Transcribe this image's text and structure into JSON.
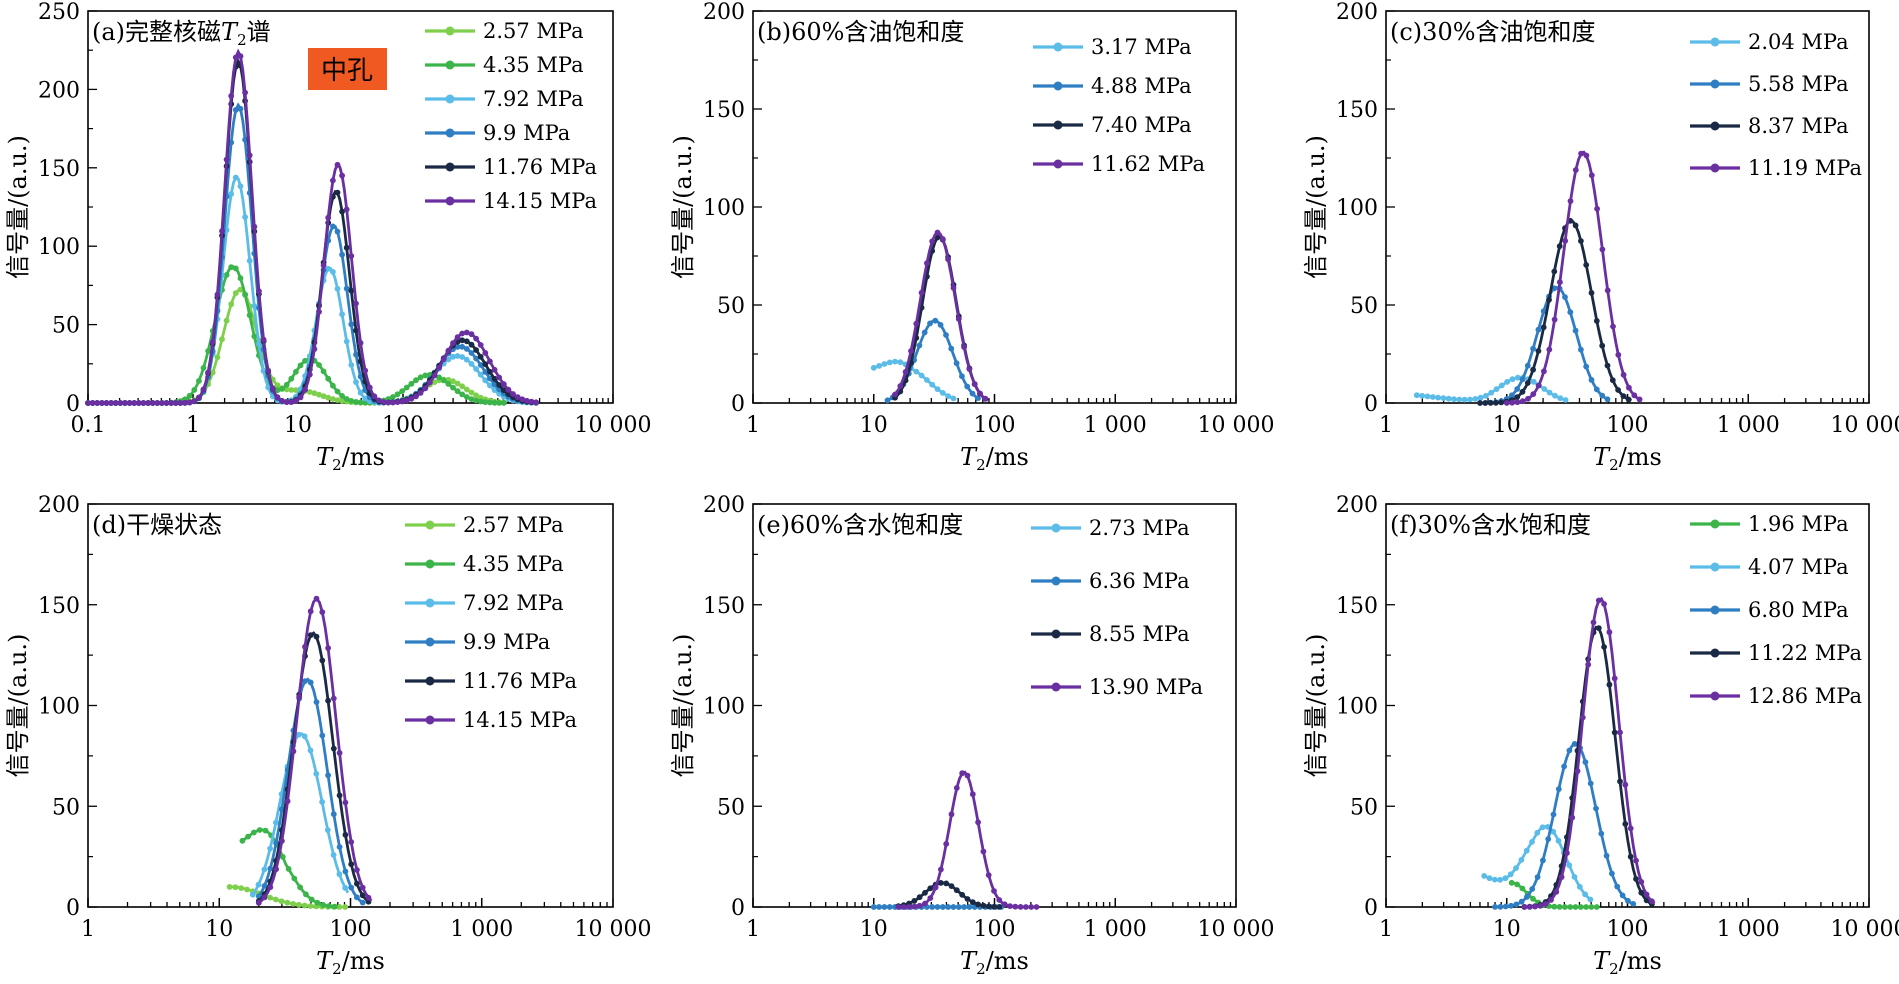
{
  "colors": {
    "c1": "#7ed04c",
    "c2": "#3bb44a",
    "c3": "#5bbce8",
    "c4": "#2f7ec4",
    "c5": "#1b2a44",
    "c6": "#6a2fa0",
    "badge": "#f05a22"
  },
  "chart_data": [
    {
      "id": "a",
      "type": "line",
      "title": "(a)完整核磁",
      "title_italic": "T",
      "title_sub": "2",
      "title_tail": "谱",
      "badge": "中孔",
      "xlabel": "T2/ms",
      "ylabel": "信号量/(a.u.)",
      "xscale": "log",
      "xlim": [
        0.1,
        10000
      ],
      "xticks": [
        0.1,
        1,
        10,
        100,
        1000,
        10000
      ],
      "xticklabels": [
        "0.1",
        "1",
        "10",
        "100",
        "1 000",
        "10 000"
      ],
      "ylim": [
        0,
        250
      ],
      "yticks": [
        0,
        50,
        100,
        150,
        200,
        250
      ],
      "legend": "top-right",
      "series": [
        {
          "name": "2.57 MPa",
          "color": "c1",
          "x_range": [
            0.1,
            1000
          ],
          "peaks": [
            [
              2.8,
              72,
              0.16
            ],
            [
              250,
              15,
              0.2
            ]
          ],
          "tail": [
            [
              10,
              8,
              0.22
            ]
          ]
        },
        {
          "name": "4.35 MPa",
          "color": "c2",
          "x_range": [
            0.1,
            1000
          ],
          "peaks": [
            [
              2.4,
              87,
              0.17
            ],
            [
              13,
              28,
              0.16
            ],
            [
              180,
              18,
              0.2
            ]
          ]
        },
        {
          "name": "7.92 MPa",
          "color": "c3",
          "x_range": [
            0.1,
            2000
          ],
          "peaks": [
            [
              2.6,
              144,
              0.13
            ],
            [
              20,
              86,
              0.13
            ],
            [
              330,
              30,
              0.22
            ]
          ]
        },
        {
          "name": "9.9 MPa",
          "color": "c4",
          "x_range": [
            0.1,
            2000
          ],
          "peaks": [
            [
              2.7,
              190,
              0.13
            ],
            [
              22,
              113,
              0.13
            ],
            [
              350,
              36,
              0.22
            ]
          ]
        },
        {
          "name": "11.76 MPa",
          "color": "c5",
          "x_range": [
            0.1,
            2000
          ],
          "peaks": [
            [
              2.7,
              218,
              0.13
            ],
            [
              23,
              135,
              0.13
            ],
            [
              370,
              40,
              0.22
            ]
          ]
        },
        {
          "name": "14.15 MPa",
          "color": "c6",
          "x_range": [
            0.1,
            2000
          ],
          "peaks": [
            [
              2.7,
              224,
              0.13
            ],
            [
              24,
              152,
              0.13
            ],
            [
              400,
              45,
              0.22
            ]
          ]
        }
      ]
    },
    {
      "id": "b",
      "type": "line",
      "title": "(b)60%含油饱和度",
      "xlabel": "T2/ms",
      "ylabel": "信号量/(a.u.)",
      "xscale": "log",
      "xlim": [
        1,
        10000
      ],
      "xticks": [
        1,
        10,
        100,
        1000,
        10000
      ],
      "xticklabels": [
        "1",
        "10",
        "100",
        "1 000",
        "10 000"
      ],
      "ylim": [
        0,
        200
      ],
      "yticks": [
        0,
        50,
        100,
        150,
        200
      ],
      "legend": "top-right",
      "series": [
        {
          "name": "3.17 MPa",
          "color": "c3",
          "x_range": [
            10,
            50
          ],
          "peaks": [
            [
              18,
              18,
              0.2
            ]
          ],
          "base": 10
        },
        {
          "name": "4.88 MPa",
          "color": "c4",
          "x_range": [
            13,
            80
          ],
          "peaks": [
            [
              32,
              42,
              0.15
            ]
          ]
        },
        {
          "name": "7.40 MPa",
          "color": "c5",
          "x_range": [
            15,
            90
          ],
          "peaks": [
            [
              35,
              85,
              0.14
            ]
          ]
        },
        {
          "name": "11.62 MPa",
          "color": "c6",
          "x_range": [
            15,
            90
          ],
          "peaks": [
            [
              34,
              87,
              0.145
            ]
          ]
        }
      ]
    },
    {
      "id": "c",
      "type": "line",
      "title": "(c)30%含油饱和度",
      "xlabel": "T2/ms",
      "ylabel": "信号量/(a.u.)",
      "xscale": "log",
      "xlim": [
        1,
        10000
      ],
      "xticks": [
        1,
        10,
        100,
        1000,
        10000
      ],
      "xticklabels": [
        "1",
        "10",
        "100",
        "1 000",
        "10 000"
      ],
      "ylim": [
        0,
        200
      ],
      "yticks": [
        0,
        50,
        100,
        150,
        200
      ],
      "legend": "top-right",
      "series": [
        {
          "name": "2.04 MPa",
          "color": "c3",
          "x_range": [
            1.8,
            32
          ],
          "peaks": [
            [
              13,
              13,
              0.18
            ]
          ],
          "base": 4
        },
        {
          "name": "5.58 MPa",
          "color": "c4",
          "x_range": [
            6,
            70
          ],
          "peaks": [
            [
              26,
              59,
              0.16
            ]
          ]
        },
        {
          "name": "8.37 MPa",
          "color": "c5",
          "x_range": [
            6,
            110
          ],
          "peaks": [
            [
              34,
              93,
              0.17
            ]
          ]
        },
        {
          "name": "11.19 MPa",
          "color": "c6",
          "x_range": [
            10,
            130
          ],
          "peaks": [
            [
              43,
              128,
              0.16
            ]
          ]
        }
      ]
    },
    {
      "id": "d",
      "type": "line",
      "title": "(d)干燥状态",
      "xlabel": "T2/ms",
      "ylabel": "信号量/(a.u.)",
      "xscale": "log",
      "xlim": [
        1,
        10000
      ],
      "xticks": [
        1,
        10,
        100,
        1000,
        10000
      ],
      "xticklabels": [
        "1",
        "10",
        "100",
        "1 000",
        "10 000"
      ],
      "ylim": [
        0,
        200
      ],
      "yticks": [
        0,
        50,
        100,
        150,
        200
      ],
      "legend": "top-right",
      "series": [
        {
          "name": "2.57 MPa",
          "color": "c1",
          "x_range": [
            12,
            100
          ],
          "peaks": [
            [
              12,
              10,
              0.25
            ]
          ]
        },
        {
          "name": "4.35 MPa",
          "color": "c2",
          "x_range": [
            15,
            80
          ],
          "peaks": [
            [
              24,
              29,
              0.16
            ]
          ],
          "base": 20
        },
        {
          "name": "7.92 MPa",
          "color": "c3",
          "x_range": [
            18,
            100
          ],
          "peaks": [
            [
              42,
              86,
              0.16
            ]
          ]
        },
        {
          "name": "9.9 MPa",
          "color": "c4",
          "x_range": [
            20,
            130
          ],
          "peaks": [
            [
              47,
              113,
              0.15
            ]
          ]
        },
        {
          "name": "11.76 MPa",
          "color": "c5",
          "x_range": [
            20,
            140
          ],
          "peaks": [
            [
              52,
              136,
              0.15
            ]
          ]
        },
        {
          "name": "14.15 MPa",
          "color": "c6",
          "x_range": [
            20,
            150
          ],
          "peaks": [
            [
              55,
              153,
              0.15
            ]
          ]
        }
      ]
    },
    {
      "id": "e",
      "type": "line",
      "title": "(e)60%含水饱和度",
      "xlabel": "T2/ms",
      "ylabel": "信号量/(a.u.)",
      "xscale": "log",
      "xlim": [
        1,
        10000
      ],
      "xticks": [
        1,
        10,
        100,
        1000,
        10000
      ],
      "xticklabels": [
        "1",
        "10",
        "100",
        "1 000",
        "10 000"
      ],
      "ylim": [
        0,
        200
      ],
      "yticks": [
        0,
        50,
        100,
        150,
        200
      ],
      "legend": "top-right",
      "series": [
        {
          "name": "2.73 MPa",
          "color": "c3",
          "x_range": [
            10,
            100
          ],
          "peaks": []
        },
        {
          "name": "6.36 MPa",
          "color": "c4",
          "x_range": [
            10,
            120
          ],
          "peaks": []
        },
        {
          "name": "8.55 MPa",
          "color": "c5",
          "x_range": [
            16,
            120
          ],
          "peaks": [
            [
              37,
              12,
              0.14
            ]
          ]
        },
        {
          "name": "13.90 MPa",
          "color": "c6",
          "x_range": [
            16,
            230
          ],
          "peaks": [
            [
              56,
              67,
              0.12
            ]
          ]
        }
      ]
    },
    {
      "id": "f",
      "type": "line",
      "title": "(f)30%含水饱和度",
      "xlabel": "T2/ms",
      "ylabel": "信号量/(a.u.)",
      "xscale": "log",
      "xlim": [
        1,
        10000
      ],
      "xticks": [
        1,
        10,
        100,
        1000,
        10000
      ],
      "xticklabels": [
        "1",
        "10",
        "100",
        "1 000",
        "10 000"
      ],
      "ylim": [
        0,
        200
      ],
      "yticks": [
        0,
        50,
        100,
        150,
        200
      ],
      "legend": "top-right",
      "series": [
        {
          "name": "1.96 MPa",
          "color": "c2",
          "x_range": [
            11,
            60
          ],
          "peaks": [
            [
              11,
              12,
              0.12
            ]
          ]
        },
        {
          "name": "4.07 MPa",
          "color": "c3",
          "x_range": [
            6.5,
            50
          ],
          "peaks": [
            [
              21,
              40,
              0.17
            ]
          ],
          "base": 15
        },
        {
          "name": "6.80 MPa",
          "color": "c4",
          "x_range": [
            8,
            120
          ],
          "peaks": [
            [
              37,
              81,
              0.17
            ]
          ]
        },
        {
          "name": "11.22 MPa",
          "color": "c5",
          "x_range": [
            14,
            160
          ],
          "peaks": [
            [
              56,
              139,
              0.15
            ]
          ]
        },
        {
          "name": "12.86 MPa",
          "color": "c6",
          "x_range": [
            14,
            170
          ],
          "peaks": [
            [
              60,
              153,
              0.15
            ]
          ]
        }
      ]
    }
  ]
}
